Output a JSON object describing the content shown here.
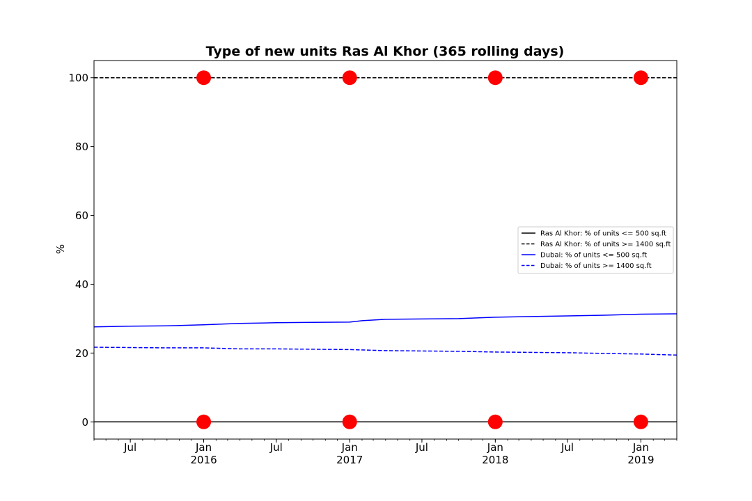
{
  "chart_data": {
    "type": "line",
    "title": "Type of new units Ras Al Khor (365 rolling days)",
    "xlabel": "",
    "ylabel": "%",
    "x_range": [
      "2015-04-01",
      "2019-04-01"
    ],
    "ylim": [
      -5,
      105
    ],
    "y_ticks": [
      0,
      20,
      40,
      60,
      80,
      100
    ],
    "x_ticks": [
      {
        "date": "2015-07-01",
        "label": "Jul",
        "sublabel": ""
      },
      {
        "date": "2016-01-01",
        "label": "Jan",
        "sublabel": "2016"
      },
      {
        "date": "2016-07-01",
        "label": "Jul",
        "sublabel": ""
      },
      {
        "date": "2017-01-01",
        "label": "Jan",
        "sublabel": "2017"
      },
      {
        "date": "2017-07-01",
        "label": "Jul",
        "sublabel": ""
      },
      {
        "date": "2018-01-01",
        "label": "Jan",
        "sublabel": "2018"
      },
      {
        "date": "2018-07-01",
        "label": "Jul",
        "sublabel": ""
      },
      {
        "date": "2019-01-01",
        "label": "Jan",
        "sublabel": "2019"
      }
    ],
    "grid": false,
    "legend_position": "center-right",
    "series": [
      {
        "name": "Ras Al Khor: % of units <= 500 sq.ft",
        "color": "#000000",
        "style": "solid",
        "x": [
          "2015-04-01",
          "2019-04-01"
        ],
        "y": [
          0,
          0
        ]
      },
      {
        "name": "Ras Al Khor: % of units >= 1400 sq.ft",
        "color": "#000000",
        "style": "dashed",
        "x": [
          "2015-04-01",
          "2019-04-01"
        ],
        "y": [
          100,
          100
        ]
      },
      {
        "name": "Dubai: % of units <= 500 sq.ft",
        "color": "#0000ff",
        "style": "solid",
        "x": [
          "2015-04-01",
          "2015-07-01",
          "2015-10-01",
          "2016-01-01",
          "2016-04-01",
          "2016-07-01",
          "2016-10-01",
          "2017-01-01",
          "2017-02-01",
          "2017-04-01",
          "2017-07-01",
          "2017-10-01",
          "2018-01-01",
          "2018-04-01",
          "2018-07-01",
          "2018-10-01",
          "2019-01-01",
          "2019-04-01"
        ],
        "y": [
          27.6,
          27.8,
          27.9,
          28.2,
          28.6,
          28.8,
          28.9,
          29.0,
          29.4,
          29.8,
          29.9,
          30.0,
          30.4,
          30.6,
          30.8,
          31.0,
          31.3,
          31.4
        ]
      },
      {
        "name": "Dubai: % of units >= 1400 sq.ft",
        "color": "#0000ff",
        "style": "dashed",
        "x": [
          "2015-04-01",
          "2015-07-01",
          "2015-10-01",
          "2016-01-01",
          "2016-04-01",
          "2016-07-01",
          "2016-10-01",
          "2017-01-01",
          "2017-04-01",
          "2017-07-01",
          "2017-10-01",
          "2018-01-01",
          "2018-04-01",
          "2018-07-01",
          "2018-10-01",
          "2019-01-01",
          "2019-04-01"
        ],
        "y": [
          21.7,
          21.6,
          21.5,
          21.5,
          21.2,
          21.2,
          21.1,
          21.0,
          20.7,
          20.6,
          20.5,
          20.3,
          20.2,
          20.1,
          19.9,
          19.7,
          19.4
        ]
      },
      {
        "name": "",
        "type": "scatter",
        "color": "#ff0000",
        "x": [
          "2016-01-01",
          "2017-01-01",
          "2018-01-01",
          "2019-01-01",
          "2016-01-01",
          "2017-01-01",
          "2018-01-01",
          "2019-01-01"
        ],
        "y": [
          100,
          100,
          100,
          100,
          0,
          0,
          0,
          0
        ]
      }
    ]
  }
}
